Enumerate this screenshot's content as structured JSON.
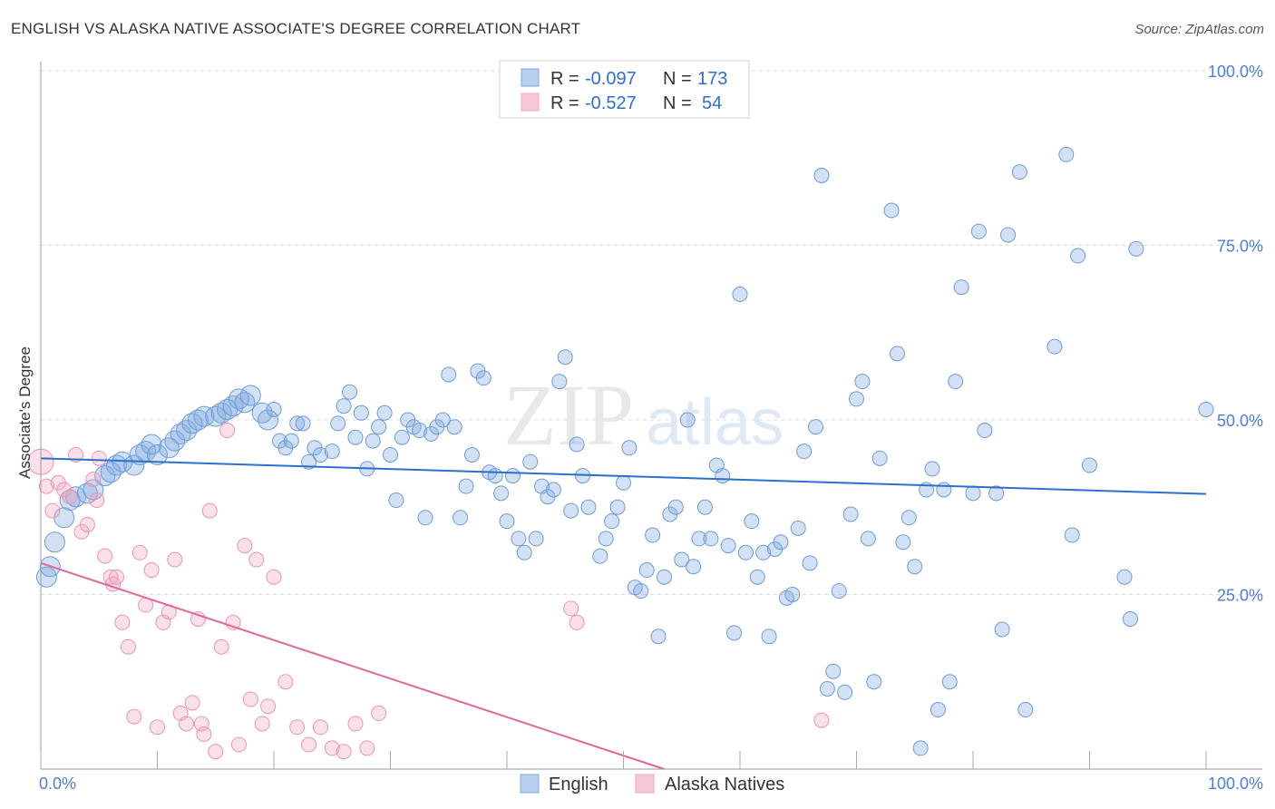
{
  "title": "ENGLISH VS ALASKA NATIVE ASSOCIATE'S DEGREE CORRELATION CHART",
  "source": "Source: ZipAtlas.com",
  "watermark": {
    "zip": "ZIP",
    "atlas": "atlas"
  },
  "colors": {
    "english": "#7fa8e0",
    "english_line": "#2b70cc",
    "alaska": "#f2a6bd",
    "alaska_line": "#e0679a",
    "grid": "#dddddd",
    "axis_label": "#4a7fd4"
  },
  "chart_data": {
    "type": "scatter",
    "ylabel": "Associate's Degree",
    "xlim": [
      0,
      100
    ],
    "ylim": [
      0,
      100
    ],
    "x_tick_labels": [
      "0.0%",
      "100.0%"
    ],
    "y_tick_labels": [
      "25.0%",
      "50.0%",
      "75.0%",
      "100.0%"
    ],
    "legend": {
      "rows": [
        {
          "r_label": "R =",
          "r_value": "-0.097",
          "n_label": "N =",
          "n_value": "173"
        },
        {
          "r_label": "R =",
          "r_value": "-0.527",
          "n_label": "N =",
          "n_value": "54"
        }
      ]
    },
    "series": [
      {
        "name": "English",
        "trend": {
          "x": [
            0,
            100
          ],
          "y": [
            44.5,
            39.4
          ]
        },
        "points": [
          [
            0.5,
            27.5
          ],
          [
            0.8,
            29
          ],
          [
            1.2,
            32.5
          ],
          [
            2,
            36
          ],
          [
            2.5,
            38.5
          ],
          [
            3,
            39
          ],
          [
            4,
            39.5
          ],
          [
            4.5,
            40
          ],
          [
            5.5,
            42
          ],
          [
            6,
            42.5
          ],
          [
            6.5,
            43.5
          ],
          [
            7,
            44
          ],
          [
            8,
            43.5
          ],
          [
            8.5,
            45
          ],
          [
            9,
            45.5
          ],
          [
            9.5,
            46.5
          ],
          [
            10,
            45
          ],
          [
            11,
            46
          ],
          [
            11.5,
            47
          ],
          [
            12,
            48
          ],
          [
            12.5,
            48.5
          ],
          [
            13,
            49.5
          ],
          [
            13.5,
            50
          ],
          [
            14,
            50.5
          ],
          [
            15,
            50.5
          ],
          [
            15.5,
            51
          ],
          [
            16,
            51.5
          ],
          [
            16.5,
            52
          ],
          [
            17,
            53
          ],
          [
            17.5,
            52.5
          ],
          [
            18,
            53.5
          ],
          [
            19,
            51
          ],
          [
            19.5,
            50
          ],
          [
            20,
            51.5
          ],
          [
            20.5,
            47
          ],
          [
            21,
            46
          ],
          [
            21.5,
            47
          ],
          [
            22,
            49.5
          ],
          [
            22.5,
            49.5
          ],
          [
            23,
            44
          ],
          [
            23.5,
            46
          ],
          [
            24,
            45
          ],
          [
            25,
            45.5
          ],
          [
            25.5,
            49.5
          ],
          [
            26,
            52
          ],
          [
            26.5,
            54
          ],
          [
            27,
            47.5
          ],
          [
            27.5,
            51
          ],
          [
            28,
            43
          ],
          [
            28.5,
            47
          ],
          [
            29,
            49
          ],
          [
            29.5,
            51
          ],
          [
            30,
            45
          ],
          [
            30.5,
            38.5
          ],
          [
            31,
            47.5
          ],
          [
            31.5,
            50
          ],
          [
            32,
            49
          ],
          [
            32.5,
            48.5
          ],
          [
            33,
            36
          ],
          [
            33.5,
            48
          ],
          [
            34,
            49
          ],
          [
            34.5,
            50
          ],
          [
            35,
            56.5
          ],
          [
            35.5,
            49
          ],
          [
            36,
            36
          ],
          [
            36.5,
            40.5
          ],
          [
            37,
            45
          ],
          [
            37.5,
            57
          ],
          [
            38,
            56
          ],
          [
            38.5,
            42.5
          ],
          [
            39,
            42
          ],
          [
            39.5,
            39.5
          ],
          [
            40,
            35.5
          ],
          [
            40.5,
            42
          ],
          [
            41,
            33
          ],
          [
            41.5,
            31
          ],
          [
            42,
            44
          ],
          [
            42.5,
            33
          ],
          [
            43,
            40.5
          ],
          [
            43.5,
            39
          ],
          [
            44,
            40
          ],
          [
            44.5,
            55.5
          ],
          [
            45,
            59
          ],
          [
            45.5,
            37
          ],
          [
            46,
            46.5
          ],
          [
            46.5,
            42
          ],
          [
            47,
            37.5
          ],
          [
            48,
            30.5
          ],
          [
            48.5,
            33
          ],
          [
            49,
            35.5
          ],
          [
            49.5,
            37.5
          ],
          [
            50,
            41
          ],
          [
            50.5,
            46
          ],
          [
            51,
            26
          ],
          [
            51.5,
            25.5
          ],
          [
            52,
            28.5
          ],
          [
            52.5,
            33.5
          ],
          [
            53,
            19
          ],
          [
            53.5,
            27.5
          ],
          [
            54,
            36.5
          ],
          [
            54.5,
            37.5
          ],
          [
            55,
            30
          ],
          [
            55.5,
            50
          ],
          [
            56,
            29
          ],
          [
            56.5,
            33
          ],
          [
            57,
            37.5
          ],
          [
            57.5,
            33
          ],
          [
            58,
            43.5
          ],
          [
            58.5,
            42
          ],
          [
            59,
            32
          ],
          [
            59.5,
            19.5
          ],
          [
            60,
            68
          ],
          [
            60.5,
            31
          ],
          [
            61,
            35.5
          ],
          [
            61.5,
            27.5
          ],
          [
            62,
            31
          ],
          [
            62.5,
            19
          ],
          [
            63,
            31.5
          ],
          [
            63.5,
            32.5
          ],
          [
            64,
            24.5
          ],
          [
            64.5,
            25
          ],
          [
            65,
            34.5
          ],
          [
            65.5,
            45.5
          ],
          [
            66,
            29.5
          ],
          [
            66.5,
            49
          ],
          [
            67,
            85
          ],
          [
            67.5,
            11.5
          ],
          [
            68,
            14
          ],
          [
            68.5,
            25.5
          ],
          [
            69,
            11
          ],
          [
            69.5,
            36.5
          ],
          [
            70,
            53
          ],
          [
            70.5,
            55.5
          ],
          [
            71,
            33
          ],
          [
            71.5,
            12.5
          ],
          [
            72,
            44.5
          ],
          [
            73,
            80
          ],
          [
            73.5,
            59.5
          ],
          [
            74,
            32.5
          ],
          [
            74.5,
            36
          ],
          [
            75,
            29
          ],
          [
            75.5,
            3
          ],
          [
            76,
            40
          ],
          [
            76.5,
            43
          ],
          [
            77,
            8.5
          ],
          [
            77.5,
            40
          ],
          [
            78,
            12.5
          ],
          [
            78.5,
            55.5
          ],
          [
            79,
            69
          ],
          [
            80,
            39.5
          ],
          [
            80.5,
            77
          ],
          [
            81,
            48.5
          ],
          [
            82,
            39.5
          ],
          [
            82.5,
            20
          ],
          [
            83,
            76.5
          ],
          [
            84,
            85.5
          ],
          [
            84.5,
            8.5
          ],
          [
            87,
            60.5
          ],
          [
            88,
            88
          ],
          [
            88.5,
            33.5
          ],
          [
            89,
            73.5
          ],
          [
            90,
            43.5
          ],
          [
            93,
            27.5
          ],
          [
            93.5,
            21.5
          ],
          [
            94,
            74.5
          ],
          [
            100,
            51.5
          ]
        ],
        "sizes_note": ""
      },
      {
        "name": "Alaska Natives",
        "trend": {
          "x": [
            0,
            53.5
          ],
          "y": [
            29.5,
            0
          ]
        },
        "points": [
          [
            0,
            44
          ],
          [
            0.5,
            40.5
          ],
          [
            1,
            37
          ],
          [
            1.5,
            41
          ],
          [
            2,
            40
          ],
          [
            2.5,
            39
          ],
          [
            3,
            45
          ],
          [
            3.5,
            34
          ],
          [
            4,
            35
          ],
          [
            4.5,
            41.5
          ],
          [
            4.8,
            38.5
          ],
          [
            5,
            44.5
          ],
          [
            5.5,
            30.5
          ],
          [
            6,
            27.5
          ],
          [
            6.2,
            26.5
          ],
          [
            6.5,
            27.5
          ],
          [
            7,
            21
          ],
          [
            7.5,
            17.5
          ],
          [
            8,
            7.5
          ],
          [
            8.5,
            31
          ],
          [
            9,
            23.5
          ],
          [
            9.5,
            28.5
          ],
          [
            10,
            6
          ],
          [
            10.5,
            21
          ],
          [
            11,
            22.5
          ],
          [
            11.5,
            30
          ],
          [
            12,
            8
          ],
          [
            12.5,
            6.5
          ],
          [
            13,
            9.5
          ],
          [
            13.5,
            21.5
          ],
          [
            13.8,
            6.5
          ],
          [
            14,
            5
          ],
          [
            14.5,
            37
          ],
          [
            15,
            2.5
          ],
          [
            15.5,
            17.5
          ],
          [
            16,
            48.5
          ],
          [
            16.5,
            21
          ],
          [
            17,
            3.5
          ],
          [
            17.5,
            32
          ],
          [
            18,
            10
          ],
          [
            18.5,
            30
          ],
          [
            19,
            6.5
          ],
          [
            19.5,
            9
          ],
          [
            20,
            27.5
          ],
          [
            21,
            12.5
          ],
          [
            22,
            6
          ],
          [
            23,
            3.5
          ],
          [
            24,
            6
          ],
          [
            25,
            3
          ],
          [
            26,
            2.5
          ],
          [
            27,
            6.5
          ],
          [
            28,
            3
          ],
          [
            29,
            8
          ],
          [
            45.5,
            23
          ],
          [
            46,
            21
          ],
          [
            67,
            7
          ]
        ]
      }
    ]
  },
  "bottom_legend": {
    "english": "English",
    "alaska": "Alaska Natives"
  }
}
